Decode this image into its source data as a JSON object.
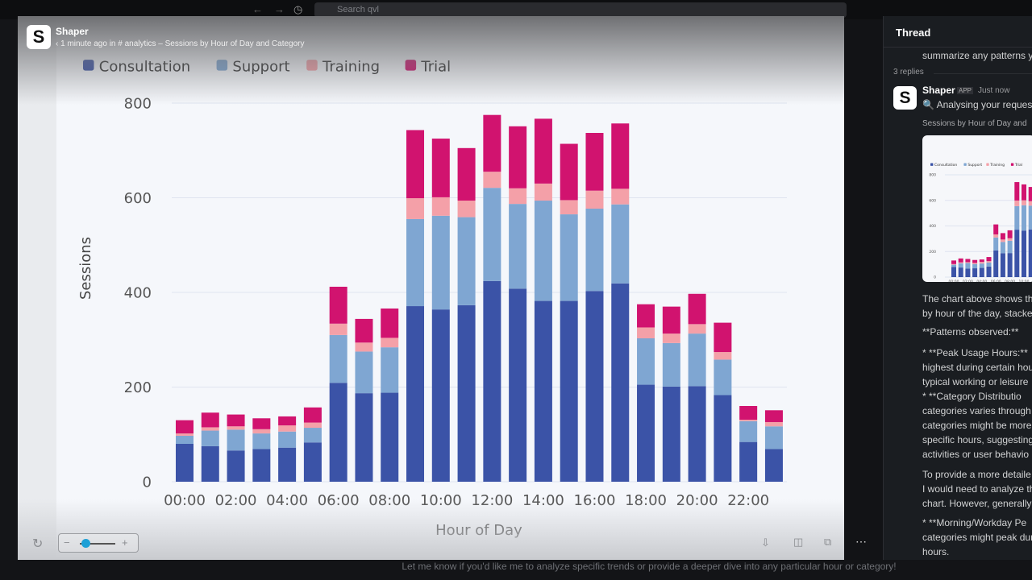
{
  "topbar": {
    "search_placeholder": "Search qvl",
    "back": "←",
    "forward": "→",
    "history": "◷"
  },
  "viewer": {
    "app_name": "Shaper",
    "logo": "S",
    "meta": "‹ 1 minute ago in # analytics  – Sessions by Hour of Day and Category"
  },
  "thread": {
    "title": "Thread",
    "prev_line": "summarize any patterns y",
    "replies": "3 replies",
    "sender": "Shaper",
    "badge": "APP",
    "time": "Just now",
    "status": "🔍 Analysing your reques",
    "attachment_title": "Sessions by Hour of Day and",
    "lines": [
      "The chart above shows th",
      "by hour of the day, stacke",
      "**Patterns observed:**",
      "*   **Peak Usage Hours:**",
      "highest during certain hou",
      "typical working or leisure",
      "*   **Category Distributio",
      "categories varies through",
      "categories might be more",
      "specific hours, suggesting",
      "activities or user behavio",
      "To provide a more detaile",
      "I would need to analyze th",
      "chart. However, generally",
      "*   **Morning/Workday Pe",
      "categories might peak dur",
      "hours."
    ]
  },
  "caption": "Let me know if you'd like me to analyze specific trends or provide a deeper dive into any particular hour or category!",
  "controls": {
    "rotate": "↻",
    "zoom_out": "−",
    "zoom_in": "+",
    "zoom_level": 0.15,
    "download": "⇩",
    "split": "◫",
    "copy": "⧉",
    "more": "⋯"
  },
  "chart_data": {
    "type": "bar",
    "stacked": true,
    "xlabel": "Hour of Day",
    "ylabel": "Sessions",
    "ylim": [
      0,
      800
    ],
    "yticks": [
      0,
      200,
      400,
      600,
      800
    ],
    "grid": true,
    "legend": "top-left",
    "categories": [
      "00:00",
      "01:00",
      "02:00",
      "03:00",
      "04:00",
      "05:00",
      "06:00",
      "07:00",
      "08:00",
      "09:00",
      "10:00",
      "11:00",
      "12:00",
      "13:00",
      "14:00",
      "15:00",
      "16:00",
      "17:00",
      "18:00",
      "19:00",
      "20:00",
      "21:00",
      "22:00",
      "23:00"
    ],
    "tick_labels": [
      "00:00",
      "02:00",
      "04:00",
      "06:00",
      "08:00",
      "10:00",
      "12:00",
      "14:00",
      "16:00",
      "18:00",
      "20:00",
      "22:00"
    ],
    "series": [
      {
        "name": "Consultation",
        "color": "#3b53a7",
        "values": [
          80,
          75,
          66,
          69,
          72,
          83,
          209,
          187,
          188,
          371,
          364,
          373,
          424,
          408,
          382,
          382,
          403,
          419,
          205,
          201,
          202,
          183,
          84,
          69
        ]
      },
      {
        "name": "Support",
        "color": "#7fa6d2",
        "values": [
          17,
          33,
          44,
          33,
          34,
          31,
          101,
          88,
          96,
          184,
          198,
          186,
          197,
          179,
          212,
          183,
          174,
          167,
          98,
          92,
          111,
          75,
          44,
          48
        ]
      },
      {
        "name": "Training",
        "color": "#f4a0a8",
        "values": [
          5,
          7,
          7,
          9,
          13,
          11,
          24,
          19,
          20,
          44,
          39,
          35,
          34,
          33,
          36,
          30,
          38,
          33,
          23,
          20,
          20,
          16,
          3,
          9
        ]
      },
      {
        "name": "Trial",
        "color": "#d1136f",
        "values": [
          28,
          31,
          25,
          23,
          19,
          32,
          78,
          50,
          62,
          144,
          124,
          111,
          120,
          131,
          137,
          119,
          122,
          138,
          49,
          57,
          64,
          62,
          29,
          25
        ]
      }
    ]
  }
}
